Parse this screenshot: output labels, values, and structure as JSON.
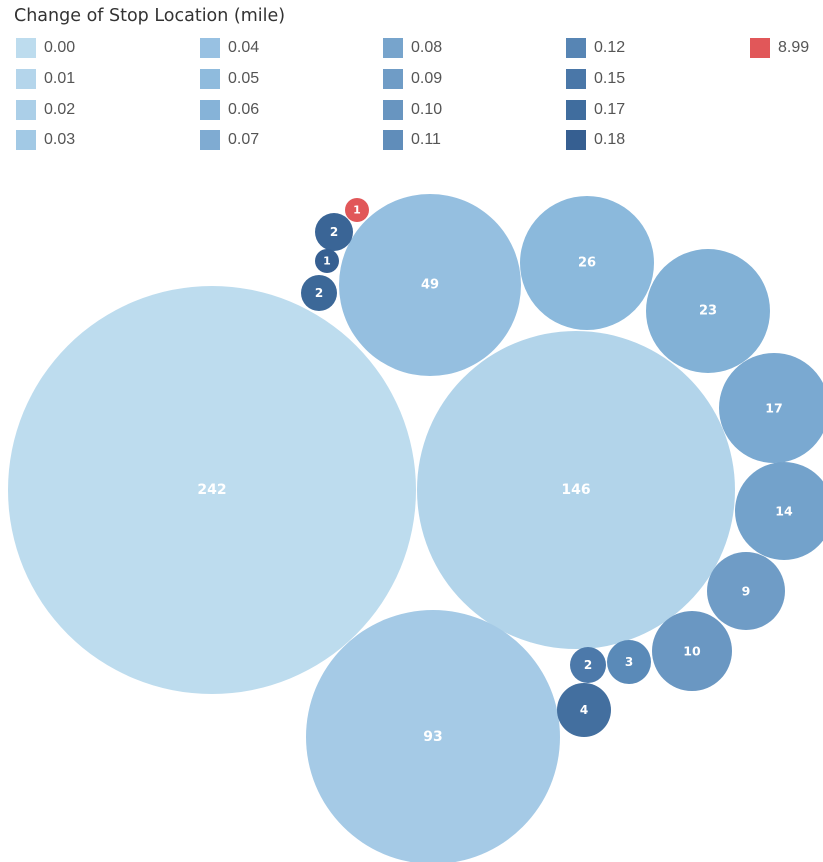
{
  "title": "Change of Stop Location (mile)",
  "legend": [
    {
      "label": "0.00",
      "color": "#bddcee"
    },
    {
      "label": "0.01",
      "color": "#b4d5eb"
    },
    {
      "label": "0.02",
      "color": "#abcfe8"
    },
    {
      "label": "0.03",
      "color": "#a2c9e5"
    },
    {
      "label": "0.04",
      "color": "#98c1e2"
    },
    {
      "label": "0.05",
      "color": "#8fbbdd"
    },
    {
      "label": "0.06",
      "color": "#86b3d8"
    },
    {
      "label": "0.07",
      "color": "#7fabd2"
    },
    {
      "label": "0.08",
      "color": "#77a4cc"
    },
    {
      "label": "0.09",
      "color": "#6f9cc6"
    },
    {
      "label": "0.10",
      "color": "#6895c0"
    },
    {
      "label": "0.11",
      "color": "#608dba"
    },
    {
      "label": "0.12",
      "color": "#5785b4"
    },
    {
      "label": "0.15",
      "color": "#4a77a8"
    },
    {
      "label": "0.17",
      "color": "#406d9e"
    },
    {
      "label": "0.18",
      "color": "#365f91"
    },
    {
      "label": "8.99",
      "color": "#e15759"
    }
  ],
  "chart_data": {
    "type": "packed-bubble",
    "title": "Change of Stop Location (mile)",
    "color_by": "Change of Stop Location (mile)",
    "bubbles": [
      {
        "category": "0.00",
        "value": 242,
        "color": "#bddcee"
      },
      {
        "category": "0.01",
        "value": 146,
        "color": "#b2d4ea"
      },
      {
        "category": "0.02",
        "value": 93,
        "color": "#a5cae6"
      },
      {
        "category": "0.03",
        "value": 49,
        "color": "#95bfe0"
      },
      {
        "category": "0.04",
        "value": 26,
        "color": "#8bb9dc"
      },
      {
        "category": "0.05",
        "value": 23,
        "color": "#82b1d6"
      },
      {
        "category": "0.06",
        "value": 17,
        "color": "#7aa9d1"
      },
      {
        "category": "0.07",
        "value": 14,
        "color": "#73a2cb"
      },
      {
        "category": "0.08",
        "value": 10,
        "color": "#6a97c2"
      },
      {
        "category": "0.09",
        "value": 9,
        "color": "#6f9cc6"
      },
      {
        "category": "0.10",
        "value": 4,
        "color": "#436f9f"
      },
      {
        "category": "0.11",
        "value": 3,
        "color": "#5a8ab8"
      },
      {
        "category": "0.12",
        "value": 2,
        "color": "#4c79aa"
      },
      {
        "category": "0.15",
        "value": 2,
        "color": "#3a6596"
      },
      {
        "category": "0.17",
        "value": 2,
        "color": "#3c6898"
      },
      {
        "category": "0.18",
        "value": 1,
        "color": "#365f91"
      },
      {
        "category": "8.99",
        "value": 1,
        "color": "#e15759"
      }
    ]
  }
}
